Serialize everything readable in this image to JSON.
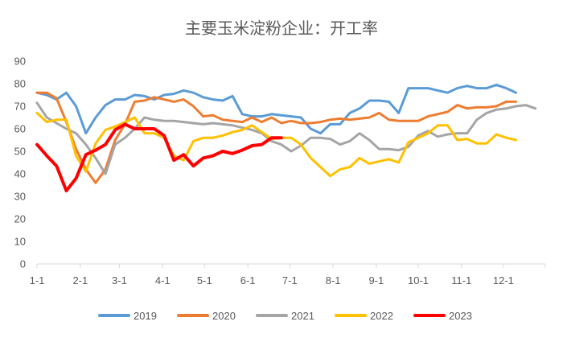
{
  "chart_data": {
    "type": "line",
    "title": "主要玉米淀粉企业：开工率",
    "xlabel": "",
    "ylabel": "",
    "ylim": [
      0,
      90
    ],
    "yticks": [
      0,
      10,
      20,
      30,
      40,
      50,
      60,
      70,
      80,
      90
    ],
    "xlim": [
      0,
      52
    ],
    "xticks": [
      {
        "label": "1-1",
        "week": 0
      },
      {
        "label": "2-1",
        "week": 4.43
      },
      {
        "label": "3-1",
        "week": 8.43
      },
      {
        "label": "4-1",
        "week": 12.86
      },
      {
        "label": "5-1",
        "week": 17.14
      },
      {
        "label": "6-1",
        "week": 21.57
      },
      {
        "label": "7-1",
        "week": 25.86
      },
      {
        "label": "8-1",
        "week": 30.29
      },
      {
        "label": "9-1",
        "week": 34.71
      },
      {
        "label": "10-1",
        "week": 39.0
      },
      {
        "label": "11-1",
        "week": 43.43
      },
      {
        "label": "12-1",
        "week": 47.71
      }
    ],
    "grid": false,
    "legend_position": "bottom",
    "series": [
      {
        "name": "2019",
        "color": "#5B9BD5",
        "data": [
          [
            0,
            76
          ],
          [
            1,
            75
          ],
          [
            2,
            73
          ],
          [
            3,
            76
          ],
          [
            4,
            70
          ],
          [
            5,
            58
          ],
          [
            6,
            65
          ],
          [
            7,
            70.5
          ],
          [
            8,
            73
          ],
          [
            9,
            73
          ],
          [
            10,
            75
          ],
          [
            11,
            74.5
          ],
          [
            12,
            73
          ],
          [
            13,
            75
          ],
          [
            14,
            75.5
          ],
          [
            15,
            77
          ],
          [
            16,
            76
          ],
          [
            17,
            74
          ],
          [
            18,
            73
          ],
          [
            19,
            72.5
          ],
          [
            20,
            74.5
          ],
          [
            21,
            66.5
          ],
          [
            22,
            65.5
          ],
          [
            23,
            65.5
          ],
          [
            24,
            66.5
          ],
          [
            25,
            66
          ],
          [
            26,
            65.5
          ],
          [
            27,
            65
          ],
          [
            28,
            60
          ],
          [
            29,
            58
          ],
          [
            30,
            62
          ],
          [
            31,
            62
          ],
          [
            32,
            67
          ],
          [
            33,
            69
          ],
          [
            34,
            72.5
          ],
          [
            35,
            72.5
          ],
          [
            36,
            72
          ],
          [
            37,
            67
          ],
          [
            38,
            78
          ],
          [
            39,
            78
          ],
          [
            40,
            78
          ],
          [
            41,
            77
          ],
          [
            42,
            76
          ],
          [
            43,
            78
          ],
          [
            44,
            79
          ],
          [
            45,
            78
          ],
          [
            46,
            78
          ],
          [
            47,
            79.5
          ],
          [
            48,
            78
          ],
          [
            49,
            76
          ]
        ]
      },
      {
        "name": "2020",
        "color": "#ED7D31",
        "data": [
          [
            0,
            76
          ],
          [
            1,
            76
          ],
          [
            2,
            73.5
          ],
          [
            3,
            63
          ],
          [
            4,
            51
          ],
          [
            5,
            42
          ],
          [
            6,
            36
          ],
          [
            7,
            42
          ],
          [
            8,
            55
          ],
          [
            9,
            62
          ],
          [
            10,
            72
          ],
          [
            11,
            72.5
          ],
          [
            12,
            74
          ],
          [
            13,
            73
          ],
          [
            14,
            72
          ],
          [
            15,
            73
          ],
          [
            16,
            70
          ],
          [
            17,
            65.5
          ],
          [
            18,
            66
          ],
          [
            19,
            64
          ],
          [
            20,
            63.5
          ],
          [
            21,
            63
          ],
          [
            22,
            65
          ],
          [
            23,
            63
          ],
          [
            24,
            65
          ],
          [
            25,
            62.5
          ],
          [
            26,
            63.5
          ],
          [
            27,
            62.5
          ],
          [
            28,
            62.5
          ],
          [
            29,
            63
          ],
          [
            30,
            64
          ],
          [
            31,
            64.5
          ],
          [
            32,
            64
          ],
          [
            33,
            64.5
          ],
          [
            34,
            65
          ],
          [
            35,
            67
          ],
          [
            36,
            64
          ],
          [
            37,
            63.5
          ],
          [
            38,
            63.5
          ],
          [
            39,
            63.5
          ],
          [
            40,
            65.5
          ],
          [
            41,
            66.5
          ],
          [
            42,
            67.5
          ],
          [
            43,
            70.5
          ],
          [
            44,
            69
          ],
          [
            45,
            69.5
          ],
          [
            46,
            69.5
          ],
          [
            47,
            70
          ],
          [
            48,
            72
          ],
          [
            49,
            72
          ]
        ]
      },
      {
        "name": "2021",
        "color": "#A5A5A5",
        "data": [
          [
            0,
            71.5
          ],
          [
            1,
            65
          ],
          [
            2,
            62.5
          ],
          [
            3,
            60
          ],
          [
            4,
            58
          ],
          [
            5,
            53
          ],
          [
            6,
            47
          ],
          [
            7,
            40
          ],
          [
            8,
            53
          ],
          [
            9,
            56
          ],
          [
            10,
            60
          ],
          [
            11,
            65
          ],
          [
            12,
            64
          ],
          [
            13,
            63.5
          ],
          [
            14,
            63.5
          ],
          [
            15,
            63
          ],
          [
            16,
            62.5
          ],
          [
            17,
            62
          ],
          [
            18,
            62.5
          ],
          [
            19,
            62
          ],
          [
            20,
            61.5
          ],
          [
            21,
            60.5
          ],
          [
            22,
            59.5
          ],
          [
            23,
            58
          ],
          [
            24,
            54.5
          ],
          [
            25,
            53
          ],
          [
            26,
            50
          ],
          [
            27,
            52.5
          ],
          [
            28,
            56
          ],
          [
            29,
            56
          ],
          [
            30,
            55.5
          ],
          [
            31,
            53
          ],
          [
            32,
            54.5
          ],
          [
            33,
            58
          ],
          [
            34,
            55
          ],
          [
            35,
            51
          ],
          [
            36,
            51
          ],
          [
            37,
            50.5
          ],
          [
            38,
            52
          ],
          [
            39,
            57
          ],
          [
            40,
            59
          ],
          [
            41,
            56.5
          ],
          [
            42,
            57.5
          ],
          [
            43,
            58
          ],
          [
            44,
            58
          ],
          [
            45,
            64
          ],
          [
            46,
            67
          ],
          [
            47,
            68.5
          ],
          [
            48,
            69
          ],
          [
            49,
            70
          ],
          [
            50,
            70.5
          ],
          [
            51,
            69
          ]
        ]
      },
      {
        "name": "2022",
        "color": "#FFC000",
        "data": [
          [
            0,
            67
          ],
          [
            1,
            63
          ],
          [
            2,
            64
          ],
          [
            3,
            64
          ],
          [
            4,
            48
          ],
          [
            5,
            41
          ],
          [
            6,
            53.5
          ],
          [
            7,
            59.5
          ],
          [
            8,
            61
          ],
          [
            9,
            63
          ],
          [
            10,
            65
          ],
          [
            11,
            58
          ],
          [
            12,
            58
          ],
          [
            13,
            56
          ],
          [
            14,
            48
          ],
          [
            15,
            46
          ],
          [
            16,
            54.5
          ],
          [
            17,
            56
          ],
          [
            18,
            56
          ],
          [
            19,
            57
          ],
          [
            20,
            58.5
          ],
          [
            21,
            59.5
          ],
          [
            22,
            61.5
          ],
          [
            23,
            58.5
          ],
          [
            24,
            55.5
          ],
          [
            25,
            56
          ],
          [
            26,
            56
          ],
          [
            27,
            53
          ],
          [
            28,
            47
          ],
          [
            29,
            43
          ],
          [
            30,
            39
          ],
          [
            31,
            42
          ],
          [
            32,
            43
          ],
          [
            33,
            47
          ],
          [
            34,
            44.5
          ],
          [
            35,
            45.5
          ],
          [
            36,
            46.5
          ],
          [
            37,
            45
          ],
          [
            38,
            54
          ],
          [
            39,
            56
          ],
          [
            40,
            58
          ],
          [
            41,
            61.5
          ],
          [
            42,
            61.5
          ],
          [
            43,
            55
          ],
          [
            44,
            55.5
          ],
          [
            45,
            53.5
          ],
          [
            46,
            53.5
          ],
          [
            47,
            57.5
          ],
          [
            48,
            56
          ],
          [
            49,
            55
          ]
        ]
      },
      {
        "name": "2023",
        "color": "#FF0000",
        "data": [
          [
            0,
            53
          ],
          [
            1,
            48
          ],
          [
            2,
            43.5
          ],
          [
            3,
            32.5
          ],
          [
            4,
            38
          ],
          [
            5,
            48.5
          ],
          [
            6,
            50.5
          ],
          [
            7,
            53
          ],
          [
            8,
            59.5
          ],
          [
            9,
            62
          ],
          [
            10,
            60
          ],
          [
            11,
            60
          ],
          [
            12,
            60
          ],
          [
            13,
            57
          ],
          [
            14,
            46
          ],
          [
            15,
            48.5
          ],
          [
            16,
            43.5
          ],
          [
            17,
            47
          ],
          [
            18,
            48
          ],
          [
            19,
            50
          ],
          [
            20,
            49
          ],
          [
            21,
            50.5
          ],
          [
            22,
            52.5
          ],
          [
            23,
            53
          ],
          [
            24,
            56
          ],
          [
            25,
            56
          ]
        ]
      }
    ]
  }
}
